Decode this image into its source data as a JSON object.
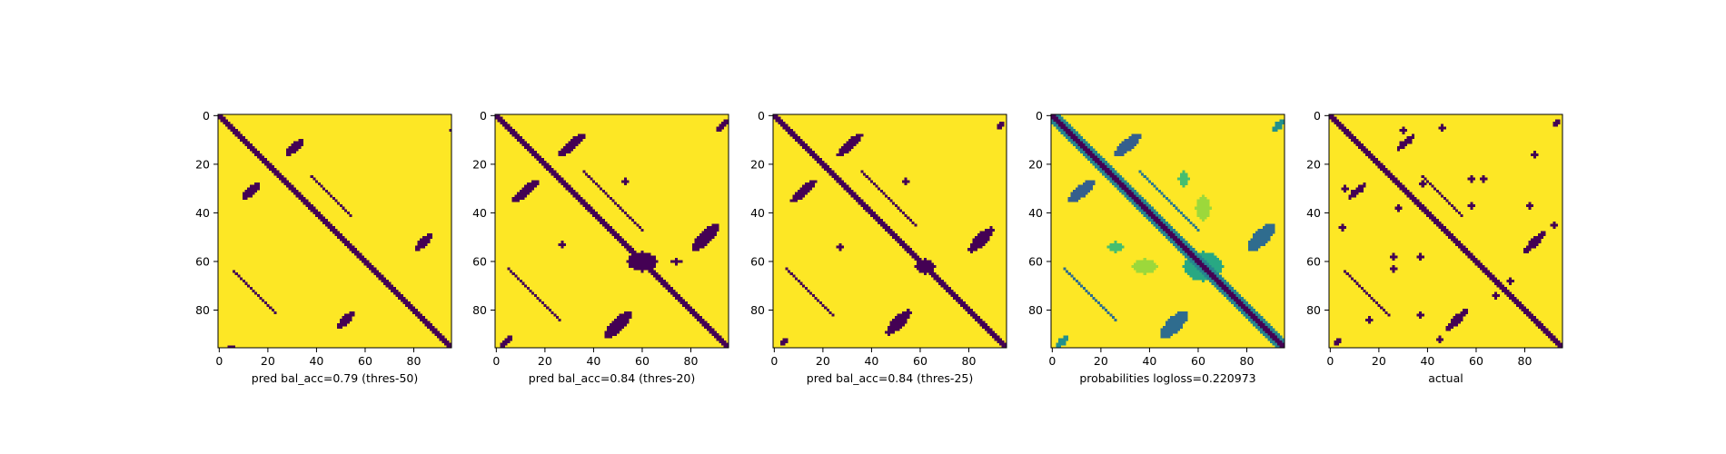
{
  "colors": {
    "background": "#ffffff",
    "colormap": "viridis",
    "viridis_low": "#440154",
    "viridis_high": "#fde725",
    "axis": "#000000"
  },
  "chart_data": [
    {
      "type": "heatmap",
      "title": "",
      "xlabel": "pred bal_acc=0.79 (thres-50)",
      "ylabel": "",
      "grid": false,
      "origin": "upper",
      "size": 96,
      "xlim": [
        0,
        96
      ],
      "ylim": [
        96,
        0
      ],
      "xticks": [
        0,
        20,
        40,
        60,
        80
      ],
      "yticks": [
        0,
        20,
        40,
        60,
        80
      ],
      "value_range": [
        0,
        1
      ],
      "bands": [
        {
          "center": 0,
          "halfwidth": 1.0,
          "value": 0
        },
        {
          "center": 58,
          "halfwidth": 0.6,
          "value": 0,
          "xmin": 6,
          "xmax": 23
        },
        {
          "center": -58,
          "halfwidth": 0.6,
          "value": 0,
          "xmin": 36,
          "xmax": 41
        },
        {
          "center": -13,
          "halfwidth": 0.7,
          "value": 0,
          "xmin": 38,
          "xmax": 54
        }
      ],
      "blobs": [
        {
          "cx": 31,
          "cy": 13,
          "rx": 5,
          "ry": 1.6,
          "angle": -40,
          "value": 0
        },
        {
          "cx": 13,
          "cy": 31,
          "rx": 5,
          "ry": 1.6,
          "angle": -40,
          "value": 0
        },
        {
          "cx": 84,
          "cy": 52,
          "rx": 5,
          "ry": 1.6,
          "angle": -45,
          "value": 0
        },
        {
          "cx": 52,
          "cy": 84,
          "rx": 5,
          "ry": 1.6,
          "angle": -45,
          "value": 0
        },
        {
          "cx": 95,
          "cy": 6,
          "rx": 0.6,
          "ry": 0.6,
          "angle": 0,
          "value": 0
        },
        {
          "cx": 5,
          "cy": 95,
          "rx": 1.2,
          "ry": 0.6,
          "angle": 0,
          "value": 0
        }
      ]
    },
    {
      "type": "heatmap",
      "title": "",
      "xlabel": "pred bal_acc=0.84 (thres-20)",
      "ylabel": "",
      "grid": false,
      "origin": "upper",
      "size": 96,
      "xlim": [
        0,
        96
      ],
      "ylim": [
        96,
        0
      ],
      "xticks": [
        0,
        20,
        40,
        60,
        80
      ],
      "yticks": [
        0,
        20,
        40,
        60,
        80
      ],
      "value_range": [
        0,
        1
      ],
      "bands": [
        {
          "center": 0,
          "halfwidth": 1.6,
          "value": 0
        },
        {
          "center": 58,
          "halfwidth": 0.6,
          "value": 0,
          "xmin": 5,
          "xmax": 26
        },
        {
          "center": -58,
          "halfwidth": 0.6,
          "value": 0,
          "xmin": 34,
          "xmax": 44
        },
        {
          "center": -13,
          "halfwidth": 0.8,
          "value": 0,
          "xmin": 36,
          "xmax": 60
        }
      ],
      "blobs": [
        {
          "cx": 31,
          "cy": 12,
          "rx": 7,
          "ry": 2,
          "angle": -40,
          "value": 0
        },
        {
          "cx": 12,
          "cy": 31,
          "rx": 7,
          "ry": 2,
          "angle": -40,
          "value": 0
        },
        {
          "cx": 86,
          "cy": 50,
          "rx": 8,
          "ry": 2.5,
          "angle": -45,
          "value": 0
        },
        {
          "cx": 50,
          "cy": 86,
          "rx": 8,
          "ry": 2.5,
          "angle": -45,
          "value": 0
        },
        {
          "cx": 60,
          "cy": 60,
          "rx": 6,
          "ry": 4,
          "angle": 0,
          "value": 0
        },
        {
          "cx": 93,
          "cy": 4,
          "rx": 3,
          "ry": 1.2,
          "angle": -45,
          "value": 0
        },
        {
          "cx": 4,
          "cy": 93,
          "rx": 3,
          "ry": 1.2,
          "angle": -45,
          "value": 0
        },
        {
          "cx": 53,
          "cy": 27,
          "rx": 1,
          "ry": 1.5,
          "angle": 0,
          "value": 0
        },
        {
          "cx": 27,
          "cy": 53,
          "rx": 1.5,
          "ry": 1,
          "angle": 0,
          "value": 0
        },
        {
          "cx": 74,
          "cy": 60,
          "rx": 2,
          "ry": 1,
          "angle": 0,
          "value": 0
        }
      ]
    },
    {
      "type": "heatmap",
      "title": "",
      "xlabel": "pred bal_acc=0.84 (thres-25)",
      "ylabel": "",
      "grid": false,
      "origin": "upper",
      "size": 96,
      "xlim": [
        0,
        96
      ],
      "ylim": [
        96,
        0
      ],
      "xticks": [
        0,
        20,
        40,
        60,
        80
      ],
      "yticks": [
        0,
        20,
        40,
        60,
        80
      ],
      "value_range": [
        0,
        1
      ],
      "bands": [
        {
          "center": 0,
          "halfwidth": 1.4,
          "value": 0
        },
        {
          "center": 58,
          "halfwidth": 0.6,
          "value": 0,
          "xmin": 5,
          "xmax": 24
        },
        {
          "center": -58,
          "halfwidth": 0.6,
          "value": 0,
          "xmin": 34,
          "xmax": 42
        },
        {
          "center": -13,
          "halfwidth": 0.8,
          "value": 0,
          "xmin": 36,
          "xmax": 58
        }
      ],
      "blobs": [
        {
          "cx": 31,
          "cy": 12,
          "rx": 6.5,
          "ry": 1.9,
          "angle": -40,
          "value": 0
        },
        {
          "cx": 12,
          "cy": 31,
          "rx": 6.5,
          "ry": 1.9,
          "angle": -40,
          "value": 0
        },
        {
          "cx": 85,
          "cy": 51,
          "rx": 7,
          "ry": 2.3,
          "angle": -45,
          "value": 0
        },
        {
          "cx": 51,
          "cy": 85,
          "rx": 7,
          "ry": 2.3,
          "angle": -45,
          "value": 0
        },
        {
          "cx": 62,
          "cy": 62,
          "rx": 4,
          "ry": 3,
          "angle": 0,
          "value": 0
        },
        {
          "cx": 93,
          "cy": 4,
          "rx": 2.5,
          "ry": 1,
          "angle": -45,
          "value": 0
        },
        {
          "cx": 4,
          "cy": 93,
          "rx": 2.5,
          "ry": 1,
          "angle": -45,
          "value": 0
        },
        {
          "cx": 54,
          "cy": 27,
          "rx": 1,
          "ry": 1.2,
          "angle": 0,
          "value": 0
        },
        {
          "cx": 27,
          "cy": 54,
          "rx": 1.2,
          "ry": 1,
          "angle": 0,
          "value": 0
        }
      ]
    },
    {
      "type": "heatmap",
      "title": "",
      "xlabel": "probabilities logloss=0.220973",
      "ylabel": "",
      "grid": false,
      "origin": "upper",
      "size": 96,
      "xlim": [
        0,
        96
      ],
      "ylim": [
        96,
        0
      ],
      "xticks": [
        0,
        20,
        40,
        60,
        80
      ],
      "yticks": [
        0,
        20,
        40,
        60,
        80
      ],
      "value_range": [
        0,
        1
      ],
      "bands": [
        {
          "center": 0,
          "halfwidth": 1.3,
          "value": 0
        },
        {
          "center": 0,
          "halfwidth": 3.0,
          "value": 0.45
        },
        {
          "center": 58,
          "halfwidth": 0.7,
          "value": 0.35,
          "xmin": 5,
          "xmax": 26
        },
        {
          "center": -58,
          "halfwidth": 0.7,
          "value": 0.35,
          "xmin": 34,
          "xmax": 44
        },
        {
          "center": -13,
          "halfwidth": 0.9,
          "value": 0.4,
          "xmin": 36,
          "xmax": 60
        }
      ],
      "blobs": [
        {
          "cx": 31,
          "cy": 12,
          "rx": 7,
          "ry": 2.2,
          "angle": -40,
          "value": 0.3
        },
        {
          "cx": 12,
          "cy": 31,
          "rx": 7,
          "ry": 2.2,
          "angle": -40,
          "value": 0.3
        },
        {
          "cx": 86,
          "cy": 50,
          "rx": 8,
          "ry": 3,
          "angle": -45,
          "value": 0.35
        },
        {
          "cx": 50,
          "cy": 86,
          "rx": 8,
          "ry": 3,
          "angle": -45,
          "value": 0.35
        },
        {
          "cx": 62,
          "cy": 62,
          "rx": 8,
          "ry": 6,
          "angle": 0,
          "value": 0.6
        },
        {
          "cx": 93,
          "cy": 4,
          "rx": 3,
          "ry": 1.5,
          "angle": -45,
          "value": 0.5
        },
        {
          "cx": 4,
          "cy": 93,
          "rx": 3,
          "ry": 1.5,
          "angle": -45,
          "value": 0.5
        },
        {
          "cx": 54,
          "cy": 26,
          "rx": 2,
          "ry": 3,
          "angle": 0,
          "value": 0.7
        },
        {
          "cx": 26,
          "cy": 54,
          "rx": 3,
          "ry": 2,
          "angle": 0,
          "value": 0.7
        },
        {
          "cx": 38,
          "cy": 62,
          "rx": 5,
          "ry": 3,
          "angle": 0,
          "value": 0.85
        },
        {
          "cx": 62,
          "cy": 38,
          "rx": 3,
          "ry": 5,
          "angle": 0,
          "value": 0.85
        }
      ]
    },
    {
      "type": "heatmap",
      "title": "",
      "xlabel": "actual",
      "ylabel": "",
      "grid": false,
      "origin": "upper",
      "size": 96,
      "xlim": [
        0,
        96
      ],
      "ylim": [
        96,
        0
      ],
      "xticks": [
        0,
        20,
        40,
        60,
        80
      ],
      "yticks": [
        0,
        20,
        40,
        60,
        80
      ],
      "value_range": [
        0,
        1
      ],
      "bands": [
        {
          "center": 0,
          "halfwidth": 1.1,
          "value": 0
        },
        {
          "center": 58,
          "halfwidth": 0.6,
          "value": 0,
          "xmin": 6,
          "xmax": 24
        },
        {
          "center": -58,
          "halfwidth": 0.6,
          "value": 0,
          "xmin": 36,
          "xmax": 41
        },
        {
          "center": -13,
          "halfwidth": 0.7,
          "value": 0,
          "xmin": 38,
          "xmax": 54
        }
      ],
      "blobs": [
        {
          "cx": 31,
          "cy": 11,
          "rx": 5,
          "ry": 1.4,
          "angle": -40,
          "value": 0
        },
        {
          "cx": 11,
          "cy": 31,
          "rx": 5,
          "ry": 1.4,
          "angle": -40,
          "value": 0
        },
        {
          "cx": 84,
          "cy": 52,
          "rx": 6,
          "ry": 1.6,
          "angle": -45,
          "value": 0
        },
        {
          "cx": 52,
          "cy": 84,
          "rx": 6,
          "ry": 1.6,
          "angle": -45,
          "value": 0
        },
        {
          "cx": 93,
          "cy": 3,
          "rx": 2.5,
          "ry": 1,
          "angle": -45,
          "value": 0
        },
        {
          "cx": 3,
          "cy": 93,
          "rx": 2.5,
          "ry": 1,
          "angle": -45,
          "value": 0
        },
        {
          "cx": 58,
          "cy": 26,
          "rx": 1,
          "ry": 1,
          "angle": 0,
          "value": 0
        },
        {
          "cx": 63,
          "cy": 26,
          "rx": 1,
          "ry": 1,
          "angle": 0,
          "value": 0
        },
        {
          "cx": 26,
          "cy": 58,
          "rx": 1,
          "ry": 1,
          "angle": 0,
          "value": 0
        },
        {
          "cx": 26,
          "cy": 63,
          "rx": 1,
          "ry": 1,
          "angle": 0,
          "value": 0
        },
        {
          "cx": 58,
          "cy": 37,
          "rx": 1,
          "ry": 1,
          "angle": 0,
          "value": 0
        },
        {
          "cx": 37,
          "cy": 58,
          "rx": 1,
          "ry": 1,
          "angle": 0,
          "value": 0
        },
        {
          "cx": 82,
          "cy": 37,
          "rx": 1,
          "ry": 1,
          "angle": 0,
          "value": 0
        },
        {
          "cx": 37,
          "cy": 82,
          "rx": 1,
          "ry": 1,
          "angle": 0,
          "value": 0
        },
        {
          "cx": 84,
          "cy": 16,
          "rx": 1,
          "ry": 1.5,
          "angle": 0,
          "value": 0
        },
        {
          "cx": 16,
          "cy": 84,
          "rx": 1.5,
          "ry": 1,
          "angle": 0,
          "value": 0
        },
        {
          "cx": 92,
          "cy": 45,
          "rx": 1,
          "ry": 1,
          "angle": 0,
          "value": 0
        },
        {
          "cx": 45,
          "cy": 92,
          "rx": 1,
          "ry": 1,
          "angle": 0,
          "value": 0
        },
        {
          "cx": 68,
          "cy": 74,
          "rx": 1,
          "ry": 1,
          "angle": 0,
          "value": 0
        },
        {
          "cx": 74,
          "cy": 68,
          "rx": 1,
          "ry": 1,
          "angle": 0,
          "value": 0
        },
        {
          "cx": 30,
          "cy": 6,
          "rx": 1,
          "ry": 1,
          "angle": 0,
          "value": 0
        },
        {
          "cx": 6,
          "cy": 30,
          "rx": 1,
          "ry": 1,
          "angle": 0,
          "value": 0
        },
        {
          "cx": 5,
          "cy": 46,
          "rx": 1,
          "ry": 1,
          "angle": 0,
          "value": 0
        },
        {
          "cx": 46,
          "cy": 5,
          "rx": 1,
          "ry": 1,
          "angle": 0,
          "value": 0
        },
        {
          "cx": 38,
          "cy": 28,
          "rx": 1,
          "ry": 1,
          "angle": 0,
          "value": 0
        },
        {
          "cx": 28,
          "cy": 38,
          "rx": 1,
          "ry": 1,
          "angle": 0,
          "value": 0
        }
      ]
    }
  ]
}
